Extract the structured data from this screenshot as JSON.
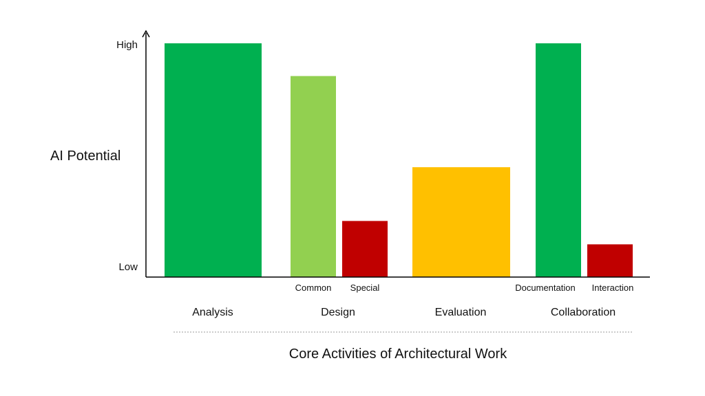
{
  "chart_data": {
    "type": "bar",
    "title": "",
    "ylabel": "AI Potential",
    "xlabel": "Core Activities of Architectural Work",
    "y_ticks": {
      "high": "High",
      "low": "Low"
    },
    "ylim": [
      0,
      100
    ],
    "groups": [
      {
        "name": "Analysis",
        "bars": [
          {
            "label": "",
            "value": 100,
            "color": "#00B050"
          }
        ]
      },
      {
        "name": "Design",
        "bars": [
          {
            "label": "Common",
            "value": 86,
            "color": "#92D050"
          },
          {
            "label": "Special",
            "value": 24,
            "color": "#C00000"
          }
        ]
      },
      {
        "name": "Evaluation",
        "bars": [
          {
            "label": "",
            "value": 47,
            "color": "#FFC000"
          }
        ]
      },
      {
        "name": "Collaboration",
        "bars": [
          {
            "label": "Documentation",
            "value": 100,
            "color": "#00B050"
          },
          {
            "label": "Interaction",
            "value": 14,
            "color": "#C00000"
          }
        ]
      }
    ],
    "grid": false,
    "legend": "none"
  }
}
